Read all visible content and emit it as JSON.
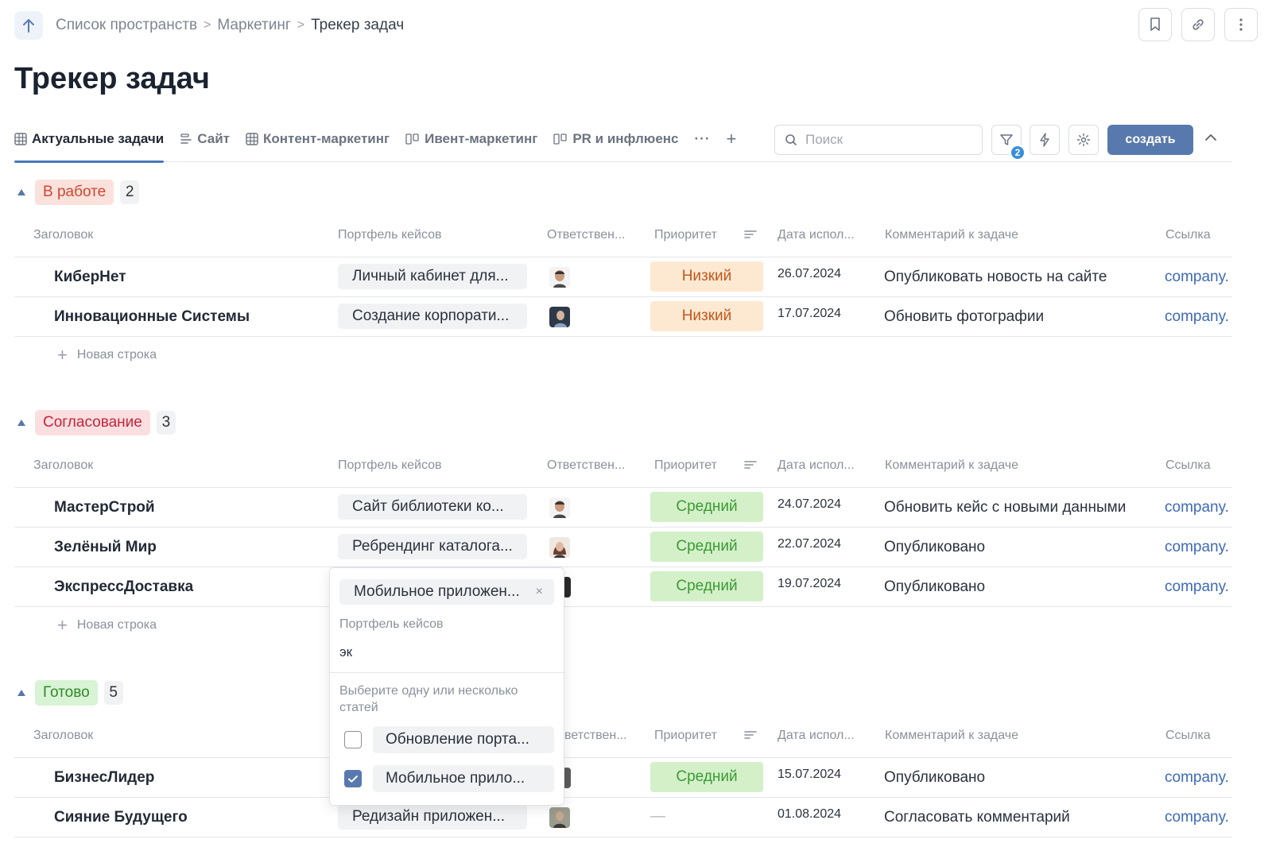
{
  "breadcrumb": {
    "items": [
      "Список пространств",
      "Маркетинг"
    ],
    "current": "Трекер задач",
    "separator": ">"
  },
  "page_title": "Трекер задач",
  "top_actions": {
    "icons": [
      "bookmark-icon",
      "link-icon",
      "more-vertical-icon"
    ]
  },
  "tabs": [
    {
      "label": "Актуальные задачи",
      "icon": "table-icon",
      "active": true
    },
    {
      "label": "Сайт",
      "icon": "list-icon",
      "active": false
    },
    {
      "label": "Контент-маркетинг",
      "icon": "table-icon",
      "active": false
    },
    {
      "label": "Ивент-маркетинг",
      "icon": "board-icon",
      "active": false
    },
    {
      "label": "PR и инфлюенс",
      "icon": "board-icon",
      "active": false
    }
  ],
  "tabs_more": "···",
  "tabs_add": "+",
  "search": {
    "placeholder": "Поиск",
    "value": ""
  },
  "filter_badge": "2",
  "create_label": "создать",
  "columns": {
    "title": "Заголовок",
    "portfolio": "Портфель кейсов",
    "responsible": "Ответствен...",
    "priority": "Приоритет",
    "date": "Дата испол...",
    "comment": "Комментарий к задаче",
    "link": "Ссылка",
    "responsible_partial": "ветствен..."
  },
  "new_row_label": "Новая строка",
  "groups": [
    {
      "status": "В работе",
      "count": "2",
      "rows": [
        {
          "title": "КиберНет",
          "portfolio": "Личный кабинет для...",
          "priority": "Низкий",
          "date": "26.07.2024",
          "comment": "Опубликовать новость на сайте",
          "link": "company."
        },
        {
          "title": "Инновационные Системы",
          "portfolio": "Создание корпорати...",
          "priority": "Низкий",
          "date": "17.07.2024",
          "comment": "Обновить фотографии",
          "link": "company."
        }
      ]
    },
    {
      "status": "Согласование",
      "count": "3",
      "rows": [
        {
          "title": "МастерСтрой",
          "portfolio": "Сайт библиотеки ко...",
          "priority": "Средний",
          "date": "24.07.2024",
          "comment": "Обновить кейс с новыми данными",
          "link": "company."
        },
        {
          "title": "Зелёный Мир",
          "portfolio": "Ребрендинг каталога...",
          "priority": "Средний",
          "date": "22.07.2024",
          "comment": "Опубликовано",
          "link": "company."
        },
        {
          "title": "ЭкспрессДоставка",
          "portfolio": "",
          "priority": "Средний",
          "date": "19.07.2024",
          "comment": "Опубликовано",
          "link": "company."
        }
      ]
    },
    {
      "status": "Готово",
      "count": "5",
      "rows": [
        {
          "title": "БизнесЛидер",
          "portfolio": "",
          "priority": "Средний",
          "date": "15.07.2024",
          "comment": "Опубликовано",
          "link": "company."
        },
        {
          "title": "Сияние Будущего",
          "portfolio": "Редизайн приложен...",
          "priority": "—",
          "date": "01.08.2024",
          "comment": "Согласовать комментарий",
          "link": "company."
        }
      ]
    }
  ],
  "popup": {
    "selected_chip": "Мобильное приложен...",
    "remove_glyph": "×",
    "field_label": "Портфель кейсов",
    "search_value": "эк",
    "hint": "Выберите одну или несколько статей",
    "options": [
      {
        "label": "Обновление порта...",
        "checked": false
      },
      {
        "label": "Мобильное прило...",
        "checked": true
      }
    ]
  },
  "colors": {
    "accent": "#5879ad",
    "link": "#3d6ab8",
    "priority_low_bg": "#fde9d2",
    "priority_mid_bg": "#d4f0c9"
  }
}
